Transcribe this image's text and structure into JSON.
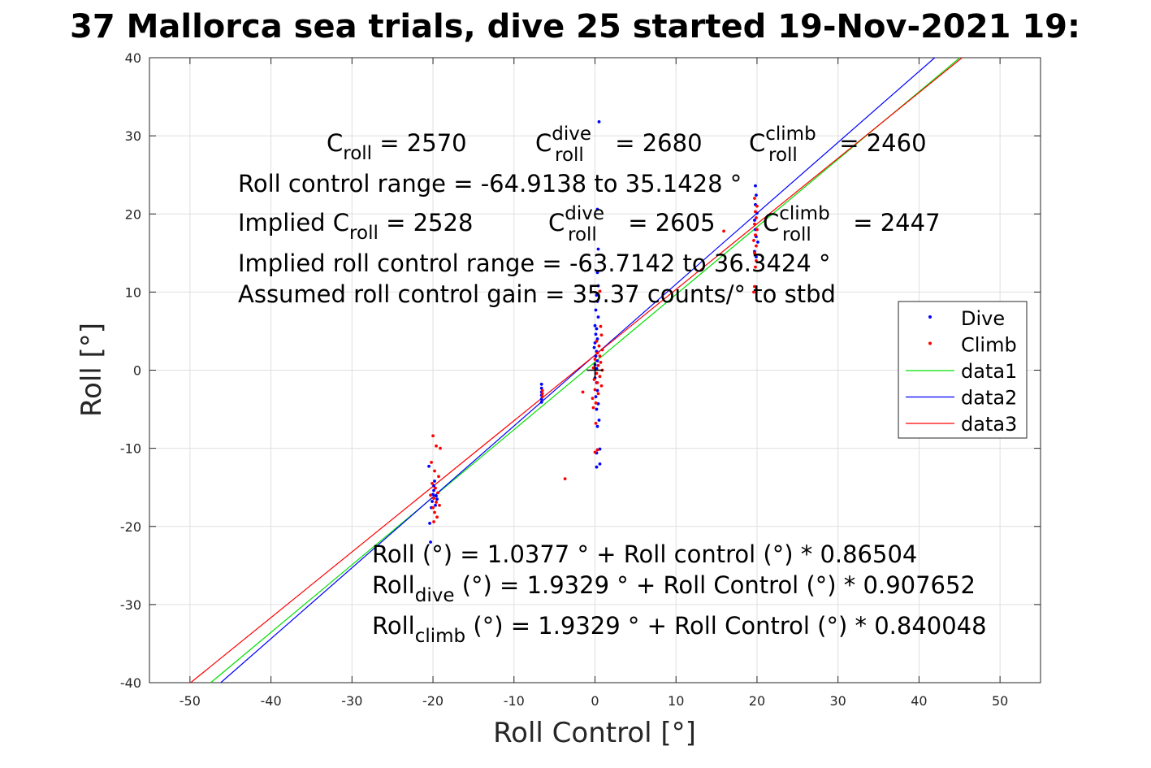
{
  "chart_data": {
    "type": "scatter",
    "title": "37 Mallorca sea trials, dive 25 started 19-Nov-2021 19:",
    "xlabel": "Roll Control [°]",
    "ylabel": "Roll [°]",
    "xlim": [
      -55,
      55
    ],
    "ylim": [
      -40,
      40
    ],
    "xticks": [
      -50,
      -40,
      -30,
      -20,
      -10,
      0,
      10,
      20,
      30,
      40,
      50
    ],
    "yticks": [
      -40,
      -30,
      -20,
      -10,
      0,
      10,
      20,
      30,
      40
    ],
    "xtick_labels": [
      "-50",
      "-40",
      "-30",
      "-20",
      "-10",
      "0",
      "10",
      "20",
      "30",
      "40",
      "50"
    ],
    "ytick_labels": [
      "-40",
      "-30",
      "-20",
      "-10",
      "0",
      "10",
      "20",
      "30",
      "40"
    ],
    "grid": true,
    "legend_position": "right",
    "series": [
      {
        "name": "Dive",
        "kind": "points",
        "color": "#0000ff",
        "points": [
          [
            -20.3,
            -22.0
          ],
          [
            -20.4,
            -19.6
          ],
          [
            -20.5,
            -12.3
          ],
          [
            -19.8,
            -14.2
          ],
          [
            -19.6,
            -16.1
          ],
          [
            -19.9,
            -15.4
          ],
          [
            -20.1,
            -16.8
          ],
          [
            -19.7,
            -17.3
          ],
          [
            -20.0,
            -15.9
          ],
          [
            -19.5,
            -16.5
          ],
          [
            -20.2,
            -17.6
          ],
          [
            -19.9,
            -14.8
          ],
          [
            -6.6,
            -1.8
          ],
          [
            -6.6,
            -2.3
          ],
          [
            -6.6,
            -2.8
          ],
          [
            -6.6,
            -3.2
          ],
          [
            -6.6,
            -3.7
          ],
          [
            -6.6,
            -4.1
          ],
          [
            0.5,
            31.8
          ],
          [
            0.3,
            20.6
          ],
          [
            0.4,
            15.5
          ],
          [
            0.3,
            12.5
          ],
          [
            0.4,
            10.8
          ],
          [
            0.2,
            9.6
          ],
          [
            0.3,
            8.8
          ],
          [
            0.1,
            7.7
          ],
          [
            0.4,
            6.8
          ],
          [
            0.0,
            5.7
          ],
          [
            0.2,
            5.3
          ],
          [
            0.1,
            4.6
          ],
          [
            0.3,
            4.0
          ],
          [
            0.0,
            3.5
          ],
          [
            -0.1,
            2.9
          ],
          [
            0.2,
            2.4
          ],
          [
            0.1,
            1.8
          ],
          [
            0.3,
            1.2
          ],
          [
            0.0,
            0.7
          ],
          [
            0.2,
            0.2
          ],
          [
            0.1,
            -0.4
          ],
          [
            0.0,
            -1.0
          ],
          [
            0.2,
            -1.6
          ],
          [
            0.3,
            -2.6
          ],
          [
            0.1,
            -3.4
          ],
          [
            0.4,
            -4.3
          ],
          [
            0.2,
            -5.0
          ],
          [
            0.5,
            -6.4
          ],
          [
            0.3,
            -7.2
          ],
          [
            0.6,
            -10.1
          ],
          [
            0.2,
            -10.6
          ],
          [
            0.6,
            -12.0
          ],
          [
            0.2,
            -12.4
          ],
          [
            19.8,
            23.6
          ],
          [
            19.9,
            22.4
          ],
          [
            19.8,
            21.2
          ],
          [
            20.0,
            20.1
          ],
          [
            19.7,
            19.2
          ],
          [
            19.8,
            18.0
          ],
          [
            19.9,
            17.1
          ],
          [
            20.1,
            16.4
          ],
          [
            19.7,
            15.2
          ],
          [
            19.9,
            14.5
          ]
        ]
      },
      {
        "name": "Climb",
        "kind": "points",
        "color": "#ff0000",
        "points": [
          [
            -20.0,
            -8.4
          ],
          [
            -19.6,
            -9.7
          ],
          [
            -19.1,
            -10.0
          ],
          [
            -20.2,
            -11.8
          ],
          [
            -19.8,
            -12.9
          ],
          [
            -19.3,
            -13.6
          ],
          [
            -20.1,
            -14.5
          ],
          [
            -19.7,
            -15.1
          ],
          [
            -19.4,
            -15.7
          ],
          [
            -20.3,
            -16.0
          ],
          [
            -19.9,
            -16.4
          ],
          [
            -19.6,
            -16.9
          ],
          [
            -19.2,
            -17.3
          ],
          [
            -20.0,
            -17.6
          ],
          [
            -19.8,
            -18.2
          ],
          [
            -19.5,
            -18.8
          ],
          [
            -19.9,
            -19.4
          ],
          [
            -6.5,
            -2.6
          ],
          [
            -6.5,
            -3.0
          ],
          [
            -6.5,
            -3.4
          ],
          [
            -3.7,
            -13.9
          ],
          [
            -1.5,
            -2.8
          ],
          [
            0.6,
            10.1
          ],
          [
            0.7,
            5.6
          ],
          [
            0.8,
            4.5
          ],
          [
            0.2,
            3.7
          ],
          [
            0.5,
            3.1
          ],
          [
            0.9,
            2.6
          ],
          [
            0.3,
            2.2
          ],
          [
            0.6,
            1.8
          ],
          [
            0.0,
            1.4
          ],
          [
            0.7,
            1.0
          ],
          [
            0.4,
            0.6
          ],
          [
            -0.2,
            0.3
          ],
          [
            0.9,
            0.0
          ],
          [
            0.2,
            -0.4
          ],
          [
            0.6,
            -0.8
          ],
          [
            -0.1,
            -1.2
          ],
          [
            0.3,
            -1.6
          ],
          [
            0.8,
            -2.0
          ],
          [
            0.0,
            -2.5
          ],
          [
            0.4,
            -3.0
          ],
          [
            -0.3,
            -3.6
          ],
          [
            0.1,
            -4.2
          ],
          [
            -0.2,
            -4.8
          ],
          [
            0.1,
            -6.8
          ],
          [
            0.3,
            -10.2
          ],
          [
            0.0,
            -10.5
          ],
          [
            15.9,
            17.8
          ],
          [
            19.7,
            22.0
          ],
          [
            20.0,
            21.0
          ],
          [
            19.8,
            20.3
          ],
          [
            19.9,
            19.5
          ],
          [
            19.7,
            18.7
          ],
          [
            20.0,
            18.0
          ],
          [
            19.8,
            17.3
          ],
          [
            19.6,
            16.6
          ],
          [
            19.9,
            15.9
          ],
          [
            19.7,
            15.0
          ],
          [
            19.9,
            14.0
          ],
          [
            19.8,
            13.2
          ],
          [
            19.7,
            10.7
          ],
          [
            19.6,
            10.0
          ]
        ]
      },
      {
        "name": "data1",
        "kind": "line",
        "color": "#00e000",
        "intercept": 1.0377,
        "slope": 0.86504
      },
      {
        "name": "data2",
        "kind": "line",
        "color": "#0000ff",
        "intercept": 1.9329,
        "slope": 0.907652
      },
      {
        "name": "data3",
        "kind": "line",
        "color": "#ff0000",
        "intercept": 1.9329,
        "slope": 0.840048
      }
    ],
    "crosshair": {
      "x": 0,
      "y": 0,
      "color": "#000000"
    }
  },
  "annotations": {
    "line1": {
      "c_roll": "C",
      "c_roll_sub": "roll",
      "c_roll_val": " = 2570",
      "c_dive": "C",
      "c_dive_sup": "dive",
      "c_dive_sub": "roll",
      "c_dive_val": " = 2680",
      "c_climb": "C",
      "c_climb_sup": "climb",
      "c_climb_sub": "roll",
      "c_climb_val": " = 2460"
    },
    "line2": "Roll control range = -64.9138 to 35.1428 °",
    "line3": {
      "implied_prefix": "Implied C",
      "implied_sub": "roll",
      "implied_val": " = 2528",
      "c_dive": "C",
      "c_dive_sup": "dive",
      "c_dive_sub": "roll",
      "c_dive_val": " = 2605",
      "c_climb": "C",
      "c_climb_sup": "climb",
      "c_climb_sub": "roll",
      "c_climb_val": " = 2447"
    },
    "line4": "Implied roll control range = -63.7142 to 36.3424 °",
    "line5": "Assumed roll control gain = 35.37 counts/° to stbd",
    "fit1": "Roll (°) = 1.0377 ° + Roll control (°) * 0.86504",
    "fit2": {
      "prefix": "Roll",
      "sub": "dive",
      "rest": " (°) = 1.9329 ° + Roll Control (°) * 0.907652"
    },
    "fit3": {
      "prefix": "Roll",
      "sub": "climb",
      "rest": " (°) = 1.9329 ° + Roll Control (°) * 0.840048"
    }
  }
}
